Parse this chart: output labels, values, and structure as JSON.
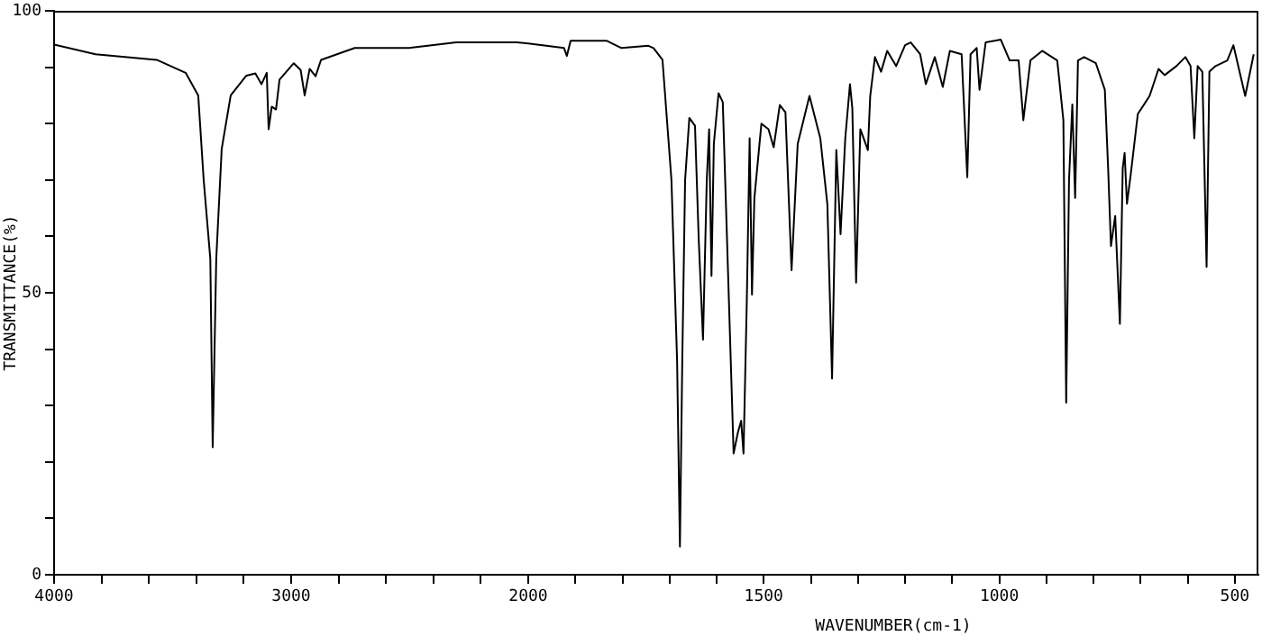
{
  "chart_data": [
    {
      "type": "line",
      "ylabel": "TRANSMITTANCE(%)",
      "x": [
        4000,
        3825,
        3567,
        3445,
        3392,
        3369,
        3341,
        3331,
        3316,
        3293,
        3255,
        3189,
        3151,
        3125,
        3103,
        3095,
        3082,
        3064,
        3049,
        2989,
        2960,
        2943,
        2922,
        2897,
        2874,
        2732,
        2504,
        2304,
        2048,
        2000
      ],
      "values": [
        94,
        92.3,
        91.3,
        89,
        85,
        70,
        56,
        22.6,
        56,
        75.5,
        85,
        88.5,
        88.9,
        87,
        89,
        79,
        83,
        82.5,
        87.8,
        90.7,
        89.5,
        85,
        89.7,
        88.4,
        91.3,
        93.4,
        93.4,
        94.4,
        94.4,
        94.2
      ],
      "color": "#000000",
      "xlim": [
        4000,
        2000
      ],
      "xticks": [
        4000,
        {
          "value": 3800,
          "label": null
        },
        {
          "value": 3600,
          "label": null
        },
        {
          "value": 3400,
          "label": null
        },
        {
          "value": 3200,
          "label": null
        },
        3000,
        {
          "value": 2800,
          "label": null
        },
        {
          "value": 2600,
          "label": null
        },
        {
          "value": 2400,
          "label": null
        },
        {
          "value": 2200,
          "label": null
        }
      ],
      "ylim": [
        0,
        100
      ],
      "yticks": [
        0,
        {
          "value": 10,
          "label": null
        },
        {
          "value": 20,
          "label": null
        },
        {
          "value": 30,
          "label": null
        },
        {
          "value": 40,
          "label": null
        },
        50,
        {
          "value": 60,
          "label": null
        },
        {
          "value": 70,
          "label": null
        },
        {
          "value": 80,
          "label": null
        },
        {
          "value": 90,
          "label": null
        },
        100
      ],
      "grid": false,
      "legend": false,
      "marker": "none",
      "line_style": "solid"
    },
    {
      "type": "line",
      "xlabel": "WAVENUMBER(cm-1)",
      "x": [
        2000,
        1924,
        1918,
        1910,
        1834,
        1802,
        1745,
        1734,
        1715,
        1696,
        1684,
        1678,
        1673,
        1667,
        1658,
        1646,
        1638,
        1629,
        1621,
        1616,
        1611,
        1606,
        1596,
        1587,
        1574,
        1564,
        1555,
        1548,
        1543,
        1536,
        1530,
        1525,
        1520,
        1505,
        1490,
        1479,
        1466,
        1454,
        1441,
        1428,
        1403,
        1380,
        1365,
        1355,
        1346,
        1337,
        1327,
        1317,
        1312,
        1304,
        1295,
        1279,
        1274,
        1264,
        1251,
        1238,
        1219,
        1200,
        1188,
        1168,
        1156,
        1137,
        1120,
        1105,
        1080,
        1068,
        1061,
        1048,
        1042,
        1029,
        997,
        978,
        959,
        949,
        934,
        909,
        877,
        864,
        858,
        852,
        845,
        839,
        833,
        820,
        795,
        776,
        769,
        763,
        754,
        744,
        738,
        734,
        729,
        721,
        706,
        681,
        662,
        649,
        624,
        605,
        594,
        586,
        579,
        569,
        560,
        554,
        541,
        516,
        503,
        478,
        460
      ],
      "values": [
        94.2,
        93.4,
        92,
        94.7,
        94.7,
        93.4,
        93.8,
        93.4,
        91.3,
        70,
        38,
        5,
        38,
        70,
        81,
        79.6,
        59.3,
        41.7,
        70,
        79,
        53,
        76.4,
        85.4,
        83.8,
        48.6,
        21.5,
        25.2,
        27.3,
        21.5,
        48.6,
        77.4,
        49.7,
        66.7,
        80,
        79,
        75.8,
        83.3,
        82,
        54,
        76.4,
        84.9,
        77.4,
        65.7,
        34.8,
        75.3,
        60.4,
        77.4,
        87,
        82.7,
        51.8,
        79,
        75.3,
        84.9,
        91.8,
        89.2,
        92.9,
        90.2,
        93.9,
        94.4,
        92.3,
        87,
        91.8,
        86.5,
        92.9,
        92.3,
        70.5,
        92.3,
        93.4,
        86,
        94.4,
        94.9,
        91.2,
        91.2,
        80.6,
        91.2,
        92.9,
        91.2,
        80.6,
        30.5,
        70,
        83.4,
        66.8,
        91.2,
        91.8,
        90.7,
        86,
        72.1,
        58.3,
        63.6,
        44.5,
        72.1,
        74.8,
        65.8,
        71,
        81.7,
        84.9,
        89.7,
        88.6,
        90.2,
        91.8,
        90.2,
        77.4,
        90.2,
        89.2,
        54.6,
        89.2,
        90.2,
        91.2,
        93.9,
        84.9,
        92.3
      ],
      "color": "#000000",
      "xlim": [
        2000,
        450
      ],
      "xticks": [
        2000,
        {
          "value": 1900,
          "label": null
        },
        {
          "value": 1800,
          "label": null
        },
        {
          "value": 1700,
          "label": null
        },
        {
          "value": 1600,
          "label": null
        },
        1500,
        {
          "value": 1400,
          "label": null
        },
        {
          "value": 1300,
          "label": null
        },
        {
          "value": 1200,
          "label": null
        },
        {
          "value": 1100,
          "label": null
        },
        1000,
        {
          "value": 900,
          "label": null
        },
        {
          "value": 800,
          "label": null
        },
        {
          "value": 700,
          "label": null
        },
        {
          "value": 600,
          "label": null
        },
        500
      ],
      "ylim": [
        0,
        100
      ],
      "tick_labels": "x",
      "grid": false,
      "legend": false,
      "marker": "none",
      "line_style": "solid"
    }
  ]
}
